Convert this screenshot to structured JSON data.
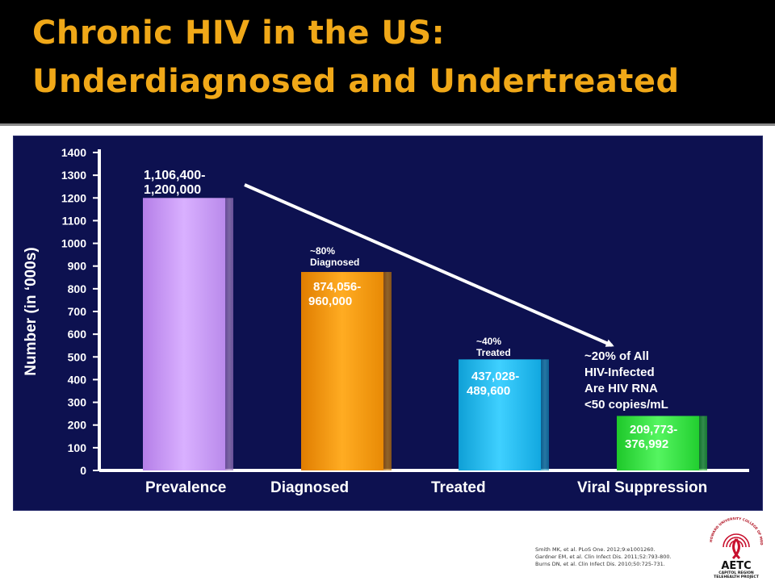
{
  "title": {
    "line1": "Chronic HIV in the US:",
    "line2": "Underdiagnosed and Undertreated"
  },
  "colors": {
    "title": "#f0a818",
    "panel": "#0d1150",
    "prevalence": "#cc99ff",
    "diagnosed": "#f29a0a",
    "treated": "#17b6e8",
    "viral_suppression": "#2ee03a",
    "arrow": "#ffffff"
  },
  "chart_data": {
    "type": "bar",
    "ylabel": "Number (in ‘000s)",
    "ylim": [
      0,
      1400
    ],
    "yticks": [
      0,
      100,
      200,
      300,
      400,
      500,
      600,
      700,
      800,
      900,
      1000,
      1100,
      1200,
      1300,
      1400
    ],
    "categories": [
      "Prevalence",
      "Diagnosed",
      "Treated",
      "Viral Suppression"
    ],
    "values": [
      1200,
      874,
      489,
      240
    ],
    "bar_labels": [
      [
        "1,106,400-",
        "1,200,000"
      ],
      [
        "874,056-",
        "960,000"
      ],
      [
        "437,028-",
        "489,600"
      ],
      [
        "209,773-",
        "376,992"
      ]
    ],
    "percent_labels": [
      null,
      [
        "~80%",
        "Diagnosed"
      ],
      [
        "~40%",
        "Treated"
      ],
      null
    ],
    "callout": [
      "~20% of All",
      "HIV-Infected",
      "Are HIV RNA",
      "<50 copies/mL"
    ]
  },
  "references": [
    "Smith MK, et al. PLoS One. 2012;9:e1001260.",
    "Gardner EM, et al. Clin Infect Dis. 2011;52:793-800.",
    "Burns DN, et al. Clin Infect Dis. 2010;50:725-731."
  ],
  "logo": {
    "arc_text": "HOWARD UNIVERSITY COLLEGE OF MEDICINE",
    "name": "AETC",
    "line2": "CAPITOL REGION",
    "line3": "TELEHEALTH PROJECT"
  }
}
